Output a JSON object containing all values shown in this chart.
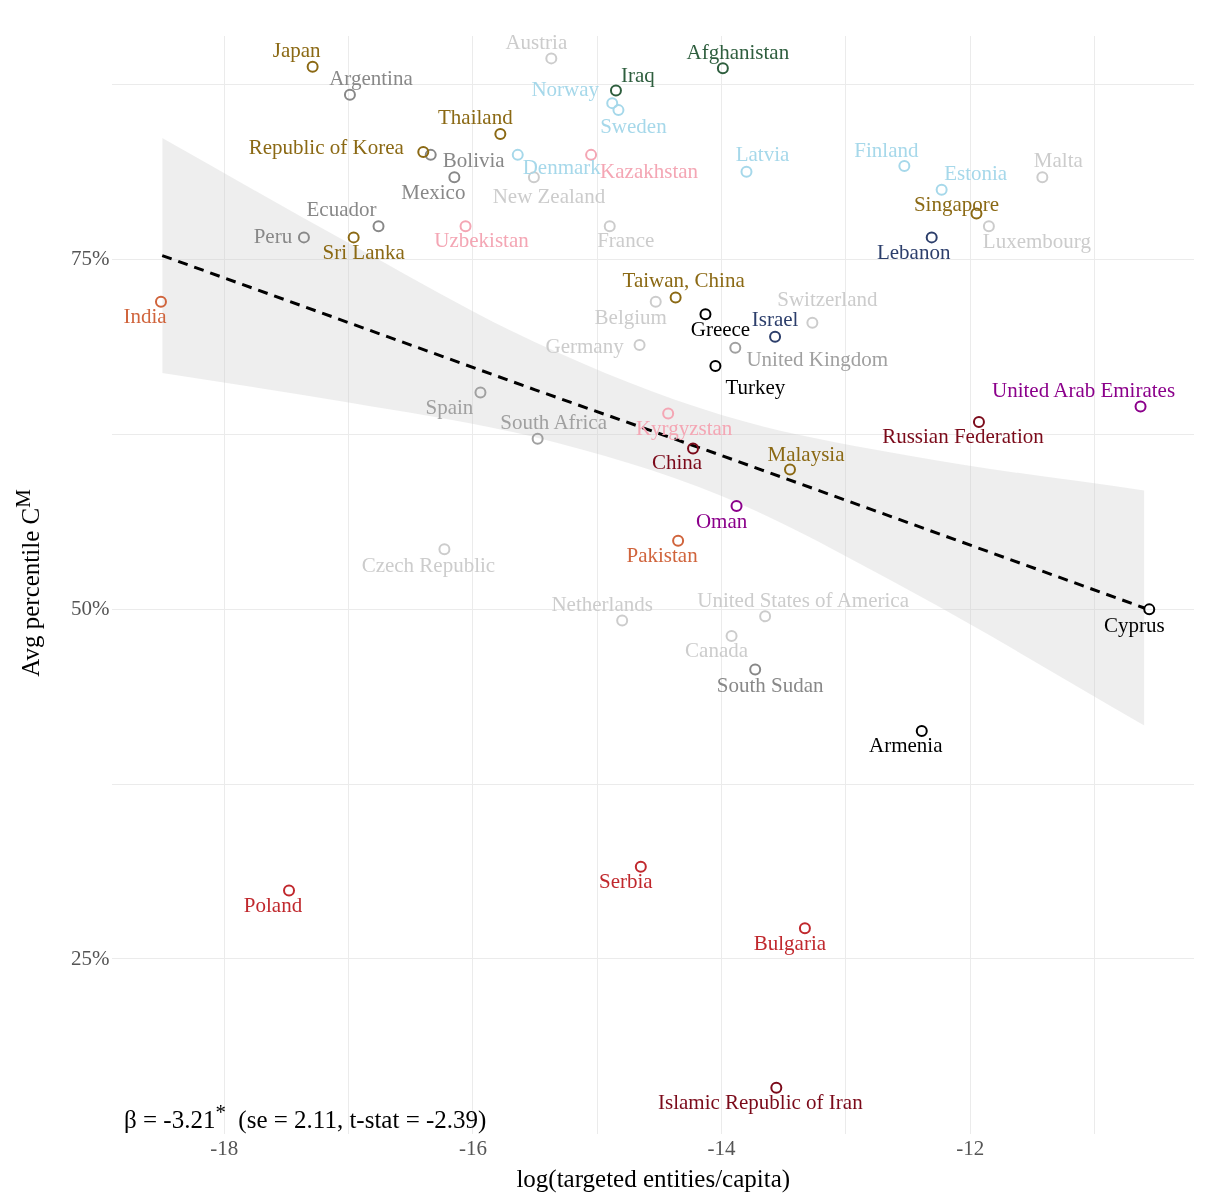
{
  "chart_data": {
    "type": "scatter",
    "xlabel": "log(targeted entities/capita)",
    "ylabel": "Avg percentile C$^{M}$",
    "annotations": [
      "β = -3.21$^{*}$  (se = 2.11, t-stat = -2.39)"
    ],
    "xlim": [
      -18.9,
      -10.2
    ],
    "ylim": [
      12.5,
      91
    ],
    "xticks": [
      -18,
      {
        "value": -17,
        "label": null
      },
      -16,
      {
        "value": -15,
        "label": null
      },
      -14,
      {
        "value": -13,
        "label": null
      },
      -12,
      {
        "value": -11,
        "label": null
      }
    ],
    "yticks": [
      {
        "value": 25,
        "label": "25%"
      },
      {
        "value": 37.5,
        "label": null
      },
      {
        "value": 50,
        "label": "50%"
      },
      {
        "value": 62.5,
        "label": null
      },
      {
        "value": 75,
        "label": "75%"
      },
      {
        "value": 87.5,
        "label": null
      }
    ],
    "grid": true,
    "legend": false,
    "marker": "circle",
    "series": [
      {
        "name": "Japan",
        "color": "#8b6914",
        "x": [
          -17.29
        ],
        "values": [
          88.8
        ]
      },
      {
        "name": "Argentina",
        "color": "#888888",
        "x": [
          -16.99
        ],
        "values": [
          86.8
        ]
      },
      {
        "name": "Austria",
        "color": "#cccccc",
        "x": [
          -15.37
        ],
        "values": [
          89.4
        ]
      },
      {
        "name": "Afghanistan",
        "color": "#2e5e3e",
        "x": [
          -13.99
        ],
        "values": [
          88.7
        ]
      },
      {
        "name": "Iraq",
        "color": "#2e5e3e",
        "x": [
          -14.85
        ],
        "values": [
          87.1
        ]
      },
      {
        "name": "Norway",
        "color": "#a6d8ea",
        "x": [
          -14.88
        ],
        "values": [
          86.2
        ]
      },
      {
        "name": "Sweden",
        "color": "#a6d8ea",
        "x": [
          -14.83
        ],
        "values": [
          85.7
        ]
      },
      {
        "name": "Thailand",
        "color": "#8b6914",
        "x": [
          -15.78
        ],
        "values": [
          84.0
        ]
      },
      {
        "name": "Republic of Korea",
        "color": "#8b6914",
        "x": [
          -16.4
        ],
        "values": [
          82.7
        ]
      },
      {
        "name": "Bolivia",
        "color": "#888888",
        "x": [
          -16.34
        ],
        "values": [
          82.5
        ]
      },
      {
        "name": "Denmark",
        "color": "#a6d8ea",
        "x": [
          -15.64
        ],
        "values": [
          82.5
        ]
      },
      {
        "name": "Kazakhstan",
        "color": "#f4a6b4",
        "x": [
          -15.05
        ],
        "values": [
          82.5
        ]
      },
      {
        "name": "Mexico",
        "color": "#888888",
        "x": [
          -16.15
        ],
        "values": [
          80.9
        ]
      },
      {
        "name": "New Zealand",
        "color": "#cccccc",
        "x": [
          -15.51
        ],
        "values": [
          80.9
        ]
      },
      {
        "name": "Latvia",
        "color": "#a6d8ea",
        "x": [
          -13.8
        ],
        "values": [
          81.3
        ]
      },
      {
        "name": "Finland",
        "color": "#a6d8ea",
        "x": [
          -12.53
        ],
        "values": [
          81.7
        ]
      },
      {
        "name": "Estonia",
        "color": "#a6d8ea",
        "x": [
          -12.23
        ],
        "values": [
          80.0
        ]
      },
      {
        "name": "Malta",
        "color": "#cccccc",
        "x": [
          -11.42
        ],
        "values": [
          80.9
        ]
      },
      {
        "name": "Singapore",
        "color": "#8b6914",
        "x": [
          -11.95
        ],
        "values": [
          78.3
        ]
      },
      {
        "name": "Ecuador",
        "color": "#888888",
        "x": [
          -16.76
        ],
        "values": [
          77.4
        ]
      },
      {
        "name": "France",
        "color": "#cccccc",
        "x": [
          -14.9
        ],
        "values": [
          77.4
        ]
      },
      {
        "name": "Uzbekistan",
        "color": "#f4a6b4",
        "x": [
          -16.06
        ],
        "values": [
          77.4
        ]
      },
      {
        "name": "Peru",
        "color": "#888888",
        "x": [
          -17.36
        ],
        "values": [
          76.6
        ]
      },
      {
        "name": "Sri Lanka",
        "color": "#8b6914",
        "x": [
          -16.96
        ],
        "values": [
          76.6
        ]
      },
      {
        "name": "Lebanon",
        "color": "#2c3e6b",
        "x": [
          -12.31
        ],
        "values": [
          76.6
        ]
      },
      {
        "name": "Luxembourg",
        "color": "#cccccc",
        "x": [
          -11.85
        ],
        "values": [
          77.4
        ]
      },
      {
        "name": "India",
        "color": "#d0643c",
        "x": [
          -18.51
        ],
        "values": [
          72.0
        ]
      },
      {
        "name": "Taiwan, China",
        "color": "#8b6914",
        "x": [
          -14.37
        ],
        "values": [
          72.3
        ]
      },
      {
        "name": "Belgium",
        "color": "#cccccc",
        "x": [
          -14.53
        ],
        "values": [
          72.0
        ]
      },
      {
        "name": "Greece",
        "color": "#000000",
        "x": [
          -14.13
        ],
        "values": [
          71.1
        ]
      },
      {
        "name": "Switzerland",
        "color": "#cccccc",
        "x": [
          -13.27
        ],
        "values": [
          70.5
        ]
      },
      {
        "name": "Israel",
        "color": "#2c3e6b",
        "x": [
          -13.57
        ],
        "values": [
          69.5
        ]
      },
      {
        "name": "Germany",
        "color": "#cccccc",
        "x": [
          -14.66
        ],
        "values": [
          68.9
        ]
      },
      {
        "name": "United Kingdom",
        "color": "#a0a0a0",
        "x": [
          -13.89
        ],
        "values": [
          68.7
        ]
      },
      {
        "name": "Turkey",
        "color": "#000000",
        "x": [
          -14.05
        ],
        "values": [
          67.4
        ]
      },
      {
        "name": "Spain",
        "color": "#a0a0a0",
        "x": [
          -15.94
        ],
        "values": [
          65.5
        ]
      },
      {
        "name": "United Arab Emirates",
        "color": "#8b008b",
        "x": [
          -10.63
        ],
        "values": [
          64.5
        ]
      },
      {
        "name": "Russian Federation",
        "color": "#7b0a1a",
        "x": [
          -11.93
        ],
        "values": [
          63.4
        ]
      },
      {
        "name": "Kyrgyzstan",
        "color": "#f4a6b4",
        "x": [
          -14.43
        ],
        "values": [
          64.0
        ]
      },
      {
        "name": "South Africa",
        "color": "#a0a0a0",
        "x": [
          -15.48
        ],
        "values": [
          62.2
        ]
      },
      {
        "name": "China",
        "color": "#7b0a1a",
        "x": [
          -14.23
        ],
        "values": [
          61.5
        ]
      },
      {
        "name": "Malaysia",
        "color": "#8b6914",
        "x": [
          -13.45
        ],
        "values": [
          60.0
        ]
      },
      {
        "name": "Oman",
        "color": "#8b008b",
        "x": [
          -13.88
        ],
        "values": [
          57.4
        ]
      },
      {
        "name": "Pakistan",
        "color": "#d0643c",
        "x": [
          -14.35
        ],
        "values": [
          54.9
        ]
      },
      {
        "name": "Czech Republic",
        "color": "#cccccc",
        "x": [
          -16.23
        ],
        "values": [
          54.3
        ]
      },
      {
        "name": "Cyprus",
        "color": "#000000",
        "x": [
          -10.56
        ],
        "values": [
          50.0
        ]
      },
      {
        "name": "United States of America",
        "color": "#cccccc",
        "x": [
          -13.65
        ],
        "values": [
          49.5
        ]
      },
      {
        "name": "Netherlands",
        "color": "#cccccc",
        "x": [
          -14.8
        ],
        "values": [
          49.2
        ]
      },
      {
        "name": "Canada",
        "color": "#cccccc",
        "x": [
          -13.92
        ],
        "values": [
          48.1
        ]
      },
      {
        "name": "South Sudan",
        "color": "#888888",
        "x": [
          -13.73
        ],
        "values": [
          45.7
        ]
      },
      {
        "name": "Armenia",
        "color": "#000000",
        "x": [
          -12.39
        ],
        "values": [
          41.3
        ]
      },
      {
        "name": "Serbia",
        "color": "#c0282d",
        "x": [
          -14.65
        ],
        "values": [
          31.6
        ]
      },
      {
        "name": "Poland",
        "color": "#c0282d",
        "x": [
          -17.48
        ],
        "values": [
          29.9
        ]
      },
      {
        "name": "Bulgaria",
        "color": "#c0282d",
        "x": [
          -13.33
        ],
        "values": [
          27.2
        ]
      },
      {
        "name": "Islamic Republic of Iran",
        "color": "#7b0a1a",
        "x": [
          -13.56
        ],
        "values": [
          15.8
        ]
      },
      {
        "type": "line",
        "color": "#000000",
        "line_style": "dashed",
        "marker": "none",
        "x": [
          -18.5,
          -17,
          -15.5,
          -14,
          -12.5,
          -10.6
        ],
        "values": [
          75.3,
          70.5,
          65.7,
          61.0,
          56.2,
          50.1
        ],
        "lower": [
          66.9,
          64.8,
          62.3,
          58.1,
          51.4,
          41.7
        ],
        "upper": [
          83.7,
          76.2,
          69.1,
          63.9,
          61.0,
          58.5
        ]
      }
    ]
  }
}
